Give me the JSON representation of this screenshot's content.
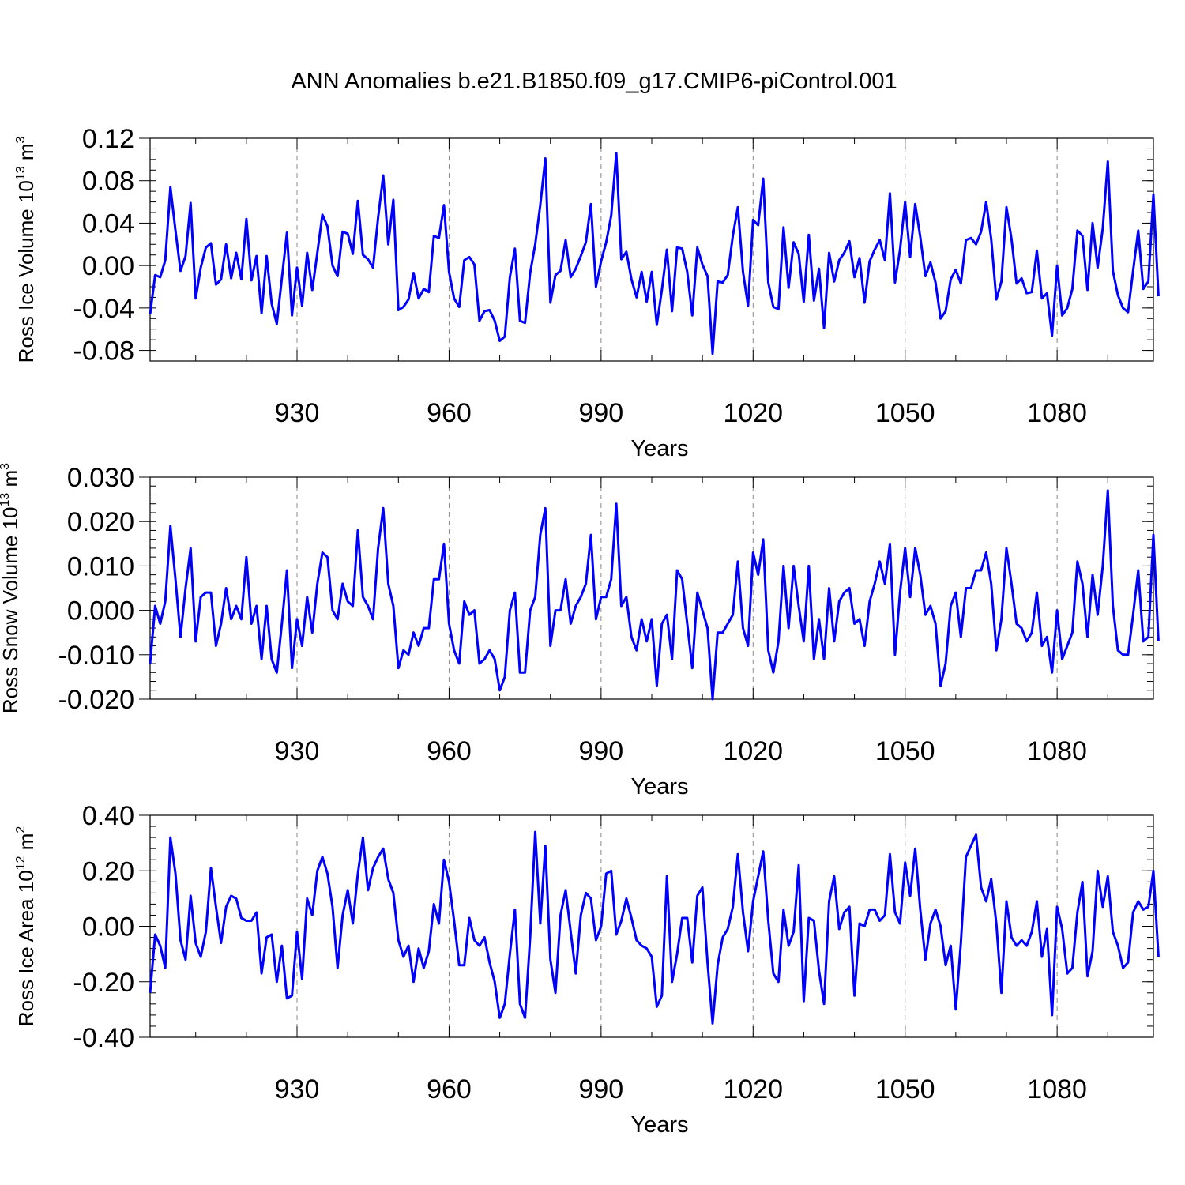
{
  "title": "ANN Anomalies b.e21.B1850.f09_g17.CMIP6-piControl.001",
  "chart_data": [
    {
      "type": "line",
      "id": "ice_volume",
      "ylabel_prefix": "Ross Ice Volume 10",
      "ylabel_exp": "13",
      "ylabel_unit": " m",
      "ylabel_unit_exp": "3",
      "xlabel": "Years",
      "xlim": [
        901,
        1099
      ],
      "ylim": [
        -0.09,
        0.12
      ],
      "xticks": [
        930,
        960,
        990,
        1020,
        1050,
        1080
      ],
      "xtick_labels": [
        "930",
        "960",
        "990",
        "1020",
        "1050",
        "1080"
      ],
      "yticks": [
        -0.08,
        -0.04,
        0.0,
        0.04,
        0.08,
        0.12
      ],
      "ytick_labels": [
        "-0.08",
        "-0.04",
        "0.00",
        "0.04",
        "0.08",
        "0.12"
      ],
      "yminor_step": 0.01,
      "x_start": 901,
      "color": "#0000ff",
      "values": [
        -0.046,
        -0.009,
        -0.011,
        0.005,
        0.074,
        0.033,
        -0.005,
        0.009,
        0.059,
        -0.031,
        -0.002,
        0.017,
        0.021,
        -0.018,
        -0.013,
        0.02,
        -0.012,
        0.012,
        -0.013,
        0.044,
        -0.014,
        0.009,
        -0.045,
        0.009,
        -0.036,
        -0.055,
        -0.012,
        0.031,
        -0.047,
        -0.002,
        -0.038,
        0.012,
        -0.023,
        0.012,
        0.048,
        0.037,
        0.0,
        -0.01,
        0.032,
        0.03,
        0.011,
        0.061,
        0.01,
        0.006,
        -0.002,
        0.045,
        0.085,
        0.02,
        0.062,
        -0.042,
        -0.039,
        -0.032,
        -0.007,
        -0.031,
        -0.022,
        -0.025,
        0.028,
        0.026,
        0.057,
        -0.006,
        -0.031,
        -0.039,
        0.005,
        0.008,
        0.001,
        -0.052,
        -0.043,
        -0.042,
        -0.052,
        -0.071,
        -0.067,
        -0.011,
        0.016,
        -0.052,
        -0.054,
        -0.007,
        0.02,
        0.057,
        0.101,
        -0.035,
        -0.009,
        -0.005,
        0.024,
        -0.011,
        -0.003,
        0.009,
        0.022,
        0.058,
        -0.02,
        0.004,
        0.022,
        0.047,
        0.106,
        0.006,
        0.013,
        -0.013,
        -0.03,
        -0.006,
        -0.034,
        -0.006,
        -0.056,
        -0.023,
        0.015,
        -0.043,
        0.017,
        0.016,
        -0.006,
        -0.047,
        0.017,
        0.001,
        -0.01,
        -0.083,
        -0.015,
        -0.016,
        -0.009,
        0.028,
        0.055,
        -0.006,
        -0.038,
        0.043,
        0.038,
        0.082,
        -0.016,
        -0.039,
        -0.041,
        0.036,
        -0.021,
        0.022,
        0.011,
        -0.034,
        0.029,
        -0.033,
        -0.003,
        -0.059,
        0.012,
        -0.015,
        0.005,
        0.012,
        0.023,
        -0.011,
        0.007,
        -0.035,
        0.004,
        0.015,
        0.024,
        0.005,
        0.068,
        -0.016,
        0.015,
        0.06,
        0.008,
        0.058,
        0.027,
        -0.01,
        0.003,
        -0.016,
        -0.05,
        -0.043,
        -0.013,
        -0.004,
        -0.017,
        0.024,
        0.026,
        0.02,
        0.032,
        0.06,
        0.025,
        -0.032,
        -0.015,
        0.055,
        0.025,
        -0.017,
        -0.012,
        -0.026,
        -0.025,
        0.014,
        -0.031,
        -0.026,
        -0.066,
        0.0,
        -0.047,
        -0.04,
        -0.022,
        0.033,
        0.028,
        -0.023,
        0.04,
        -0.002,
        0.035,
        0.098,
        -0.005,
        -0.028,
        -0.04,
        -0.044,
        -0.005,
        0.033,
        -0.022,
        -0.015,
        0.067,
        -0.029
      ]
    },
    {
      "type": "line",
      "id": "snow_volume",
      "ylabel_prefix": "Ross Snow Volume 10",
      "ylabel_exp": "13",
      "ylabel_unit": " m",
      "ylabel_unit_exp": "3",
      "xlabel": "Years",
      "xlim": [
        901,
        1099
      ],
      "ylim": [
        -0.02,
        0.03
      ],
      "xticks": [
        930,
        960,
        990,
        1020,
        1050,
        1080
      ],
      "xtick_labels": [
        "930",
        "960",
        "990",
        "1020",
        "1050",
        "1080"
      ],
      "yticks": [
        -0.02,
        -0.01,
        0.0,
        0.01,
        0.02,
        0.03
      ],
      "ytick_labels": [
        "-0.020",
        "-0.010",
        "0.000",
        "0.010",
        "0.020",
        "0.030"
      ],
      "yminor_step": 0.002,
      "x_start": 901,
      "color": "#0000ff",
      "values": [
        -0.012,
        0.001,
        -0.003,
        0.002,
        0.019,
        0.007,
        -0.006,
        0.005,
        0.014,
        -0.007,
        0.003,
        0.004,
        0.004,
        -0.008,
        -0.003,
        0.005,
        -0.002,
        0.001,
        -0.002,
        0.012,
        -0.003,
        0.001,
        -0.011,
        0.001,
        -0.011,
        -0.014,
        -0.003,
        0.009,
        -0.013,
        -0.002,
        -0.008,
        0.003,
        -0.005,
        0.006,
        0.013,
        0.012,
        0.0,
        -0.002,
        0.006,
        0.002,
        0.001,
        0.018,
        0.003,
        0.001,
        -0.002,
        0.014,
        0.023,
        0.006,
        0.001,
        -0.013,
        -0.009,
        -0.01,
        -0.005,
        -0.008,
        -0.004,
        -0.004,
        0.007,
        0.007,
        0.015,
        -0.003,
        -0.009,
        -0.012,
        0.002,
        -0.001,
        0.0,
        -0.012,
        -0.011,
        -0.009,
        -0.011,
        -0.018,
        -0.015,
        0.0,
        0.004,
        -0.014,
        -0.014,
        0.0,
        0.003,
        0.017,
        0.023,
        -0.008,
        0.0,
        0.0,
        0.007,
        -0.003,
        0.001,
        0.003,
        0.006,
        0.017,
        -0.002,
        0.003,
        0.003,
        0.007,
        0.024,
        0.001,
        0.003,
        -0.006,
        -0.009,
        -0.002,
        -0.007,
        -0.002,
        -0.017,
        -0.003,
        -0.001,
        -0.011,
        0.009,
        0.007,
        -0.003,
        -0.013,
        0.004,
        0.0,
        -0.004,
        -0.02,
        -0.005,
        -0.005,
        -0.003,
        -0.001,
        0.011,
        -0.004,
        -0.008,
        0.013,
        0.008,
        0.016,
        -0.009,
        -0.014,
        -0.007,
        0.01,
        -0.004,
        0.01,
        0.001,
        -0.007,
        0.01,
        -0.011,
        -0.002,
        -0.011,
        0.005,
        -0.007,
        0.002,
        0.004,
        0.005,
        -0.003,
        -0.002,
        -0.008,
        0.002,
        0.006,
        0.011,
        0.006,
        0.015,
        -0.01,
        0.004,
        0.014,
        0.003,
        0.014,
        0.008,
        -0.001,
        0.001,
        -0.003,
        -0.017,
        -0.012,
        0.001,
        0.004,
        -0.006,
        0.005,
        0.005,
        0.009,
        0.009,
        0.013,
        0.006,
        -0.009,
        -0.002,
        0.014,
        0.006,
        -0.003,
        -0.004,
        -0.007,
        -0.005,
        0.004,
        -0.008,
        -0.006,
        -0.014,
        0.0,
        -0.011,
        -0.008,
        -0.005,
        0.011,
        0.006,
        -0.006,
        0.008,
        -0.001,
        0.01,
        0.027,
        0.001,
        -0.009,
        -0.01,
        -0.01,
        -0.001,
        0.009,
        -0.007,
        -0.006,
        0.017,
        -0.007
      ]
    },
    {
      "type": "line",
      "id": "ice_area",
      "ylabel_prefix": "Ross Ice Area 10",
      "ylabel_exp": "12",
      "ylabel_unit": " m",
      "ylabel_unit_exp": "2",
      "xlabel": "Years",
      "xlim": [
        901,
        1099
      ],
      "ylim": [
        -0.4,
        0.4
      ],
      "xticks": [
        930,
        960,
        990,
        1020,
        1050,
        1080
      ],
      "xtick_labels": [
        "930",
        "960",
        "990",
        "1020",
        "1050",
        "1080"
      ],
      "yticks": [
        -0.4,
        -0.2,
        0.0,
        0.2,
        0.4
      ],
      "ytick_labels": [
        "-0.40",
        "-0.20",
        "0.00",
        "0.20",
        "0.40"
      ],
      "yminor_step": 0.04,
      "x_start": 901,
      "color": "#0000ff",
      "values": [
        -0.24,
        -0.03,
        -0.07,
        -0.15,
        0.32,
        0.19,
        -0.05,
        -0.12,
        0.11,
        -0.06,
        -0.11,
        -0.02,
        0.21,
        0.07,
        -0.06,
        0.07,
        0.11,
        0.1,
        0.03,
        0.02,
        0.02,
        0.05,
        -0.17,
        -0.04,
        -0.03,
        -0.2,
        -0.07,
        -0.26,
        -0.25,
        -0.02,
        -0.19,
        0.1,
        0.04,
        0.2,
        0.25,
        0.19,
        0.07,
        -0.15,
        0.04,
        0.13,
        0.01,
        0.19,
        0.32,
        0.13,
        0.21,
        0.25,
        0.28,
        0.17,
        0.12,
        -0.05,
        -0.11,
        -0.07,
        -0.2,
        -0.08,
        -0.15,
        -0.09,
        0.08,
        0.01,
        0.24,
        0.16,
        0.02,
        -0.14,
        -0.14,
        0.03,
        -0.05,
        -0.07,
        -0.04,
        -0.13,
        -0.2,
        -0.33,
        -0.28,
        -0.1,
        0.06,
        -0.28,
        -0.33,
        -0.04,
        0.34,
        0.01,
        0.29,
        -0.12,
        -0.24,
        0.04,
        0.13,
        -0.02,
        -0.17,
        0.04,
        0.12,
        0.1,
        -0.05,
        0.0,
        0.19,
        0.2,
        -0.03,
        0.02,
        0.1,
        0.03,
        -0.05,
        -0.07,
        -0.08,
        -0.11,
        -0.29,
        -0.25,
        0.18,
        -0.2,
        -0.1,
        0.03,
        0.03,
        -0.13,
        0.11,
        0.14,
        -0.13,
        -0.35,
        -0.14,
        -0.04,
        -0.01,
        0.07,
        0.26,
        0.05,
        -0.09,
        0.09,
        0.18,
        0.27,
        0.02,
        -0.17,
        -0.2,
        0.06,
        -0.07,
        -0.02,
        0.22,
        -0.27,
        0.03,
        0.02,
        -0.16,
        -0.28,
        0.09,
        0.18,
        -0.01,
        0.05,
        0.07,
        -0.25,
        0.01,
        0.0,
        0.06,
        0.06,
        0.02,
        0.04,
        0.26,
        0.05,
        0.01,
        0.23,
        0.11,
        0.28,
        0.06,
        -0.12,
        0.01,
        0.06,
        0.0,
        -0.14,
        -0.07,
        -0.3,
        -0.06,
        0.25,
        0.29,
        0.33,
        0.14,
        0.09,
        0.17,
        0.01,
        -0.24,
        0.09,
        -0.04,
        -0.07,
        -0.05,
        -0.07,
        -0.02,
        0.09,
        -0.11,
        -0.01,
        -0.32,
        0.07,
        -0.01,
        -0.17,
        -0.15,
        0.05,
        0.16,
        -0.18,
        -0.09,
        0.2,
        0.07,
        0.18,
        -0.02,
        -0.07,
        -0.15,
        -0.13,
        0.05,
        0.09,
        0.06,
        0.07,
        0.2,
        -0.11
      ]
    }
  ]
}
